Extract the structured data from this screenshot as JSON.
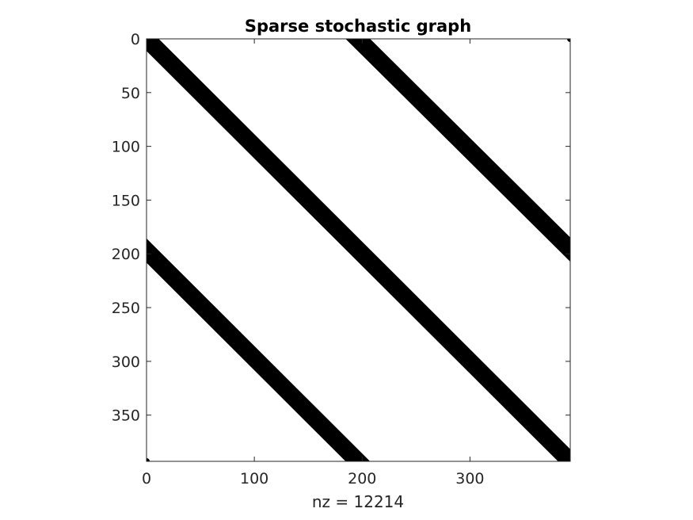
{
  "chart_data": {
    "type": "spy",
    "title": "Sparse stochastic graph",
    "xlabel": "nz = 12214",
    "ylabel": "",
    "matrix_size": 393,
    "nonzeros": 12214,
    "xlim": [
      0,
      393
    ],
    "ylim": [
      0,
      393
    ],
    "y_axis_direction": "reversed",
    "x_ticks": [
      0,
      100,
      200,
      300
    ],
    "y_ticks": [
      0,
      50,
      100,
      150,
      200,
      250,
      300,
      350
    ],
    "band_half_width": 8,
    "bands": [
      {
        "name": "main-diagonal",
        "start": [
          0,
          0
        ],
        "end": [
          393,
          393
        ]
      },
      {
        "name": "upper-band",
        "start": [
          196,
          0
        ],
        "end": [
          393,
          196
        ]
      },
      {
        "name": "lower-band",
        "start": [
          0,
          197
        ],
        "end": [
          196,
          393
        ]
      }
    ],
    "corner_points": [
      [
        393,
        0
      ],
      [
        0,
        393
      ]
    ],
    "marker_color": "#000000",
    "grid": false,
    "legend": "none"
  }
}
